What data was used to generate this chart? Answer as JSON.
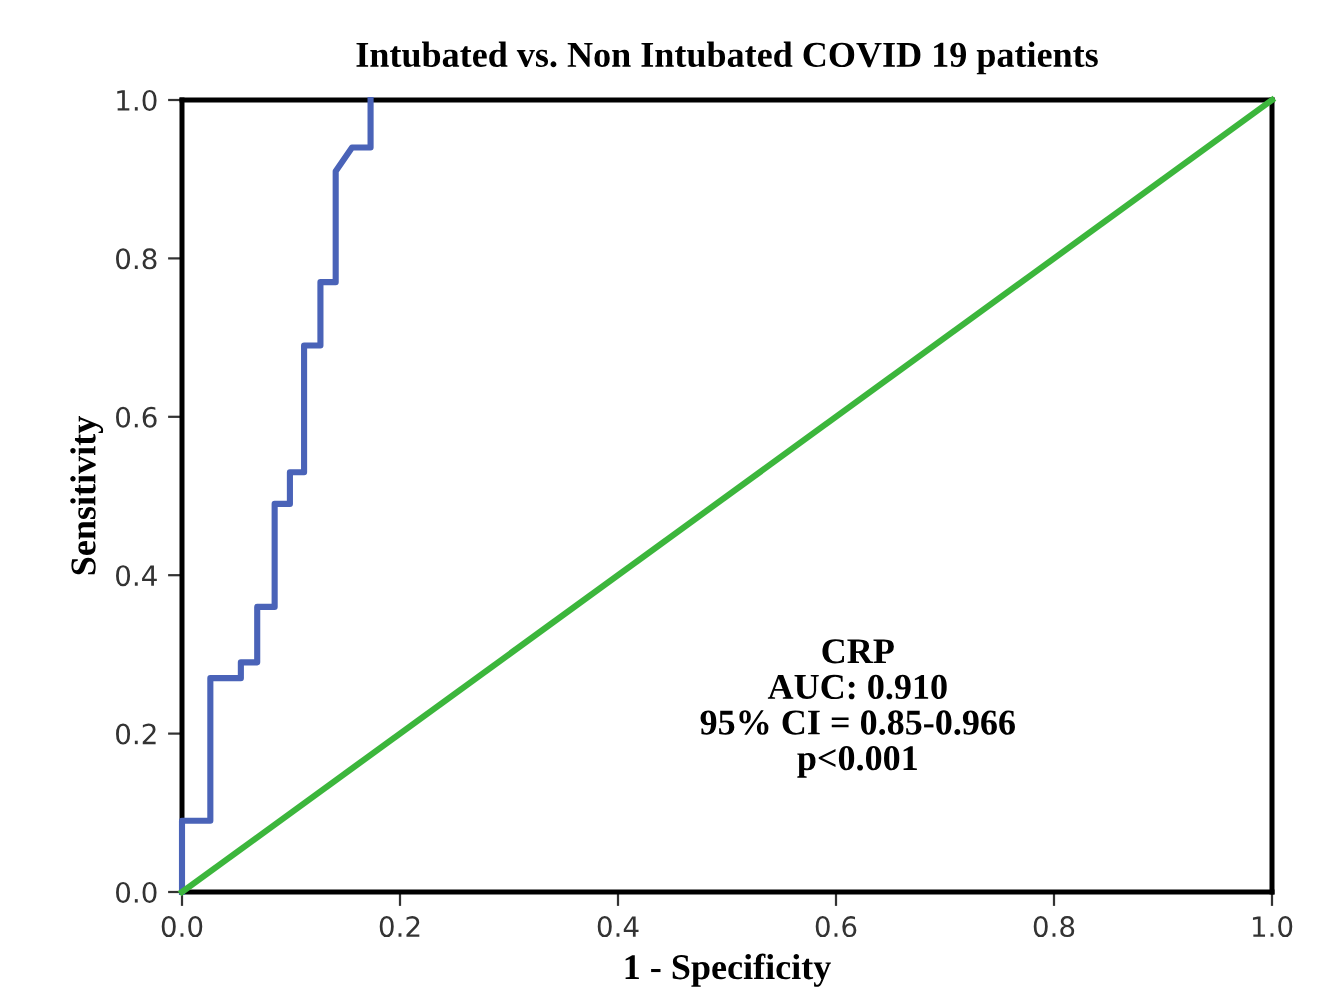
{
  "chart_data": {
    "type": "line",
    "title": "Intubated vs. Non Intubated COVID 19 patients",
    "xlabel": "1 - Specificity",
    "ylabel": "Sensitivity",
    "xlim": [
      0,
      1
    ],
    "ylim": [
      0,
      1
    ],
    "xticks": [
      {
        "value": 0,
        "label": "0.0"
      },
      0.2,
      0.4,
      0.6,
      0.8,
      {
        "value": 1,
        "label": "1.0"
      }
    ],
    "yticks": [
      {
        "value": 0,
        "label": "0.0"
      },
      0.2,
      0.4,
      0.6,
      0.8,
      {
        "value": 1,
        "label": "1.0"
      }
    ],
    "series": [
      {
        "color": "#4a63b8",
        "x": [
          0,
          0,
          0.026,
          0.026,
          0.054,
          0.054,
          0.069,
          0.069,
          0.085,
          0.085,
          0.099,
          0.099,
          0.112,
          0.112,
          0.127,
          0.127,
          0.141,
          0.141,
          0.156,
          0.173,
          0.173
        ],
        "values": [
          0,
          0.09,
          0.09,
          0.27,
          0.27,
          0.29,
          0.29,
          0.36,
          0.36,
          0.49,
          0.49,
          0.53,
          0.53,
          0.69,
          0.69,
          0.77,
          0.77,
          0.91,
          0.94,
          0.94,
          1.0
        ]
      },
      {
        "color": "#3cb63c",
        "x": [
          0,
          1
        ],
        "values": [
          0,
          1
        ]
      }
    ],
    "annotations": [
      "CRP",
      "AUC: 0.910",
      "95% CI = 0.85-0.966",
      "p<0.001"
    ],
    "marker": "none",
    "line_style": "solid",
    "grid": false,
    "legend": false
  }
}
